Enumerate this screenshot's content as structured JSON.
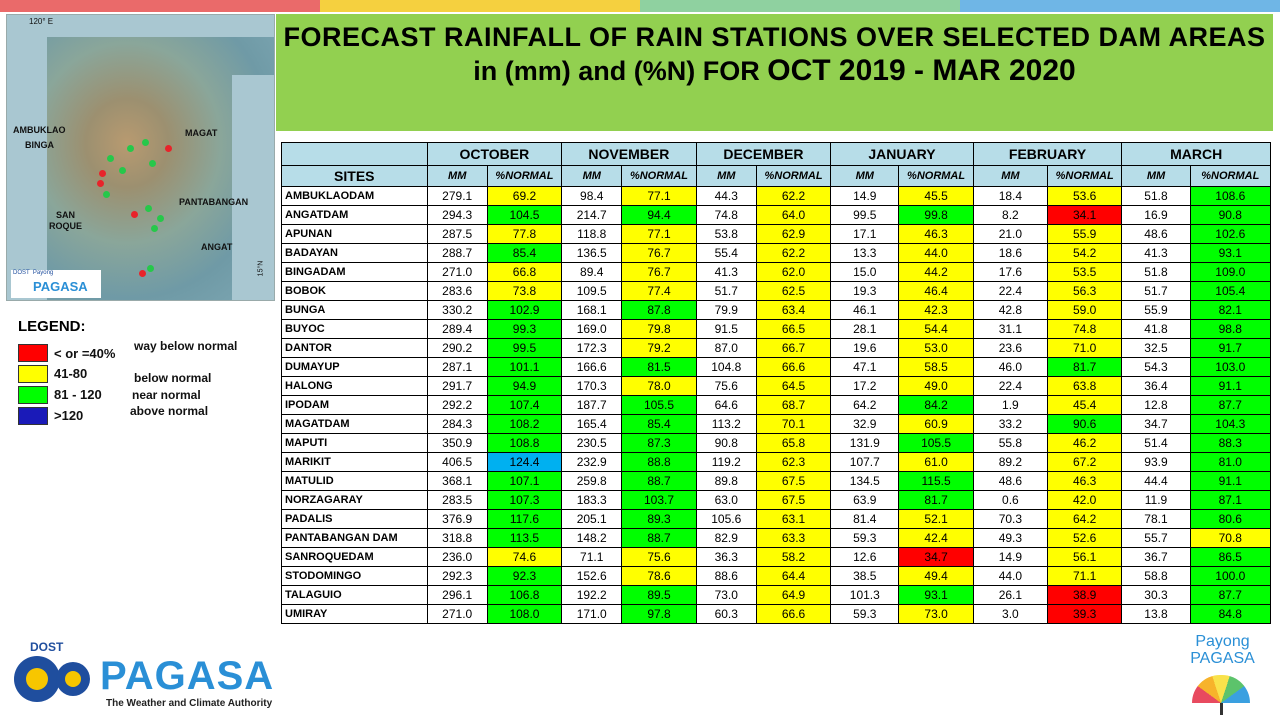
{
  "topbar_colors": [
    "#ea6a6a",
    "#f5d03f",
    "#8fd1a0",
    "#6fb6e6"
  ],
  "title": {
    "line1": "FORECAST RAINFALL OF RAIN STATIONS OVER SELECTED DAM AREAS",
    "line2_prefix": "in (mm) and (%N) FOR",
    "line2_period": "OCT 2019 - MAR 2020"
  },
  "map": {
    "labels": {
      "lon": "120° E",
      "lat": "15°N",
      "ambuklao": "AMBUKLAO",
      "binga": "BINGA",
      "magat": "MAGAT",
      "san_roque": "SAN\nROQUE",
      "pantabangan": "PANTABANGAN",
      "angat": "ANGAT"
    },
    "logo_text": "PAGASA",
    "logo_small": "DOST  Payong"
  },
  "legend": {
    "title": "LEGEND:",
    "items": [
      {
        "range": "< or =40%",
        "desc": "way below normal",
        "color": "#ff0000"
      },
      {
        "range": "41-80",
        "desc": "below normal",
        "color": "#ffff00"
      },
      {
        "range": "81 - 120",
        "desc": "near normal",
        "color": "#00ff00"
      },
      {
        "range": ">120",
        "desc": "above normal",
        "color": "#1a1ab8"
      }
    ]
  },
  "table": {
    "months": [
      "OCTOBER",
      "NOVEMBER",
      "DECEMBER",
      "JANUARY",
      "FEBRUARY",
      "MARCH"
    ],
    "sites_header": "SITES",
    "mm_header": "MM",
    "pct_header": "%NORMAL",
    "rows": [
      {
        "site": "AMBUKLAODAM",
        "cells": [
          [
            "279.1",
            "69.2",
            "y"
          ],
          [
            "98.4",
            "77.1",
            "y"
          ],
          [
            "44.3",
            "62.2",
            "y"
          ],
          [
            "14.9",
            "45.5",
            "y"
          ],
          [
            "18.4",
            "53.6",
            "y"
          ],
          [
            "51.8",
            "108.6",
            "g"
          ]
        ]
      },
      {
        "site": "ANGATDAM",
        "cells": [
          [
            "294.3",
            "104.5",
            "g"
          ],
          [
            "214.7",
            "94.4",
            "g"
          ],
          [
            "74.8",
            "64.0",
            "y"
          ],
          [
            "99.5",
            "99.8",
            "g"
          ],
          [
            "8.2",
            "34.1",
            "r"
          ],
          [
            "16.9",
            "90.8",
            "g"
          ]
        ]
      },
      {
        "site": "APUNAN",
        "cells": [
          [
            "287.5",
            "77.8",
            "y"
          ],
          [
            "118.8",
            "77.1",
            "y"
          ],
          [
            "53.8",
            "62.9",
            "y"
          ],
          [
            "17.1",
            "46.3",
            "y"
          ],
          [
            "21.0",
            "55.9",
            "y"
          ],
          [
            "48.6",
            "102.6",
            "g"
          ]
        ]
      },
      {
        "site": "BADAYAN",
        "cells": [
          [
            "288.7",
            "85.4",
            "g"
          ],
          [
            "136.5",
            "76.7",
            "y"
          ],
          [
            "55.4",
            "62.2",
            "y"
          ],
          [
            "13.3",
            "44.0",
            "y"
          ],
          [
            "18.6",
            "54.2",
            "y"
          ],
          [
            "41.3",
            "93.1",
            "g"
          ]
        ]
      },
      {
        "site": "BINGADAM",
        "cells": [
          [
            "271.0",
            "66.8",
            "y"
          ],
          [
            "89.4",
            "76.7",
            "y"
          ],
          [
            "41.3",
            "62.0",
            "y"
          ],
          [
            "15.0",
            "44.2",
            "y"
          ],
          [
            "17.6",
            "53.5",
            "y"
          ],
          [
            "51.8",
            "109.0",
            "g"
          ]
        ]
      },
      {
        "site": "BOBOK",
        "cells": [
          [
            "283.6",
            "73.8",
            "y"
          ],
          [
            "109.5",
            "77.4",
            "y"
          ],
          [
            "51.7",
            "62.5",
            "y"
          ],
          [
            "19.3",
            "46.4",
            "y"
          ],
          [
            "22.4",
            "56.3",
            "y"
          ],
          [
            "51.7",
            "105.4",
            "g"
          ]
        ]
      },
      {
        "site": "BUNGA",
        "cells": [
          [
            "330.2",
            "102.9",
            "g"
          ],
          [
            "168.1",
            "87.8",
            "g"
          ],
          [
            "79.9",
            "63.4",
            "y"
          ],
          [
            "46.1",
            "42.3",
            "y"
          ],
          [
            "42.8",
            "59.0",
            "y"
          ],
          [
            "55.9",
            "82.1",
            "g"
          ]
        ]
      },
      {
        "site": "BUYOC",
        "cells": [
          [
            "289.4",
            "99.3",
            "g"
          ],
          [
            "169.0",
            "79.8",
            "y"
          ],
          [
            "91.5",
            "66.5",
            "y"
          ],
          [
            "28.1",
            "54.4",
            "y"
          ],
          [
            "31.1",
            "74.8",
            "y"
          ],
          [
            "41.8",
            "98.8",
            "g"
          ]
        ]
      },
      {
        "site": "DANTOR",
        "cells": [
          [
            "290.2",
            "99.5",
            "g"
          ],
          [
            "172.3",
            "79.2",
            "y"
          ],
          [
            "87.0",
            "66.7",
            "y"
          ],
          [
            "19.6",
            "53.0",
            "y"
          ],
          [
            "23.6",
            "71.0",
            "y"
          ],
          [
            "32.5",
            "91.7",
            "g"
          ]
        ]
      },
      {
        "site": "DUMAYUP",
        "cells": [
          [
            "287.1",
            "101.1",
            "g"
          ],
          [
            "166.6",
            "81.5",
            "g"
          ],
          [
            "104.8",
            "66.6",
            "y"
          ],
          [
            "47.1",
            "58.5",
            "y"
          ],
          [
            "46.0",
            "81.7",
            "g"
          ],
          [
            "54.3",
            "103.0",
            "g"
          ]
        ]
      },
      {
        "site": "HALONG",
        "cells": [
          [
            "291.7",
            "94.9",
            "g"
          ],
          [
            "170.3",
            "78.0",
            "y"
          ],
          [
            "75.6",
            "64.5",
            "y"
          ],
          [
            "17.2",
            "49.0",
            "y"
          ],
          [
            "22.4",
            "63.8",
            "y"
          ],
          [
            "36.4",
            "91.1",
            "g"
          ]
        ]
      },
      {
        "site": "IPODAM",
        "cells": [
          [
            "292.2",
            "107.4",
            "g"
          ],
          [
            "187.7",
            "105.5",
            "g"
          ],
          [
            "64.6",
            "68.7",
            "y"
          ],
          [
            "64.2",
            "84.2",
            "g"
          ],
          [
            "1.9",
            "45.4",
            "y"
          ],
          [
            "12.8",
            "87.7",
            "g"
          ]
        ]
      },
      {
        "site": "MAGATDAM",
        "cells": [
          [
            "284.3",
            "108.2",
            "g"
          ],
          [
            "165.4",
            "85.4",
            "g"
          ],
          [
            "113.2",
            "70.1",
            "y"
          ],
          [
            "32.9",
            "60.9",
            "y"
          ],
          [
            "33.2",
            "90.6",
            "g"
          ],
          [
            "34.7",
            "104.3",
            "g"
          ]
        ]
      },
      {
        "site": "MAPUTI",
        "cells": [
          [
            "350.9",
            "108.8",
            "g"
          ],
          [
            "230.5",
            "87.3",
            "g"
          ],
          [
            "90.8",
            "65.8",
            "y"
          ],
          [
            "131.9",
            "105.5",
            "g"
          ],
          [
            "55.8",
            "46.2",
            "y"
          ],
          [
            "51.4",
            "88.3",
            "g"
          ]
        ]
      },
      {
        "site": "MARIKIT",
        "cells": [
          [
            "406.5",
            "124.4",
            "b"
          ],
          [
            "232.9",
            "88.8",
            "g"
          ],
          [
            "119.2",
            "62.3",
            "y"
          ],
          [
            "107.7",
            "61.0",
            "y"
          ],
          [
            "89.2",
            "67.2",
            "y"
          ],
          [
            "93.9",
            "81.0",
            "g"
          ]
        ]
      },
      {
        "site": "MATULID",
        "cells": [
          [
            "368.1",
            "107.1",
            "g"
          ],
          [
            "259.8",
            "88.7",
            "g"
          ],
          [
            "89.8",
            "67.5",
            "y"
          ],
          [
            "134.5",
            "115.5",
            "g"
          ],
          [
            "48.6",
            "46.3",
            "y"
          ],
          [
            "44.4",
            "91.1",
            "g"
          ]
        ]
      },
      {
        "site": "NORZAGARAY",
        "cells": [
          [
            "283.5",
            "107.3",
            "g"
          ],
          [
            "183.3",
            "103.7",
            "g"
          ],
          [
            "63.0",
            "67.5",
            "y"
          ],
          [
            "63.9",
            "81.7",
            "g"
          ],
          [
            "0.6",
            "42.0",
            "y"
          ],
          [
            "11.9",
            "87.1",
            "g"
          ]
        ]
      },
      {
        "site": "PADALIS",
        "cells": [
          [
            "376.9",
            "117.6",
            "g"
          ],
          [
            "205.1",
            "89.3",
            "g"
          ],
          [
            "105.6",
            "63.1",
            "y"
          ],
          [
            "81.4",
            "52.1",
            "y"
          ],
          [
            "70.3",
            "64.2",
            "y"
          ],
          [
            "78.1",
            "80.6",
            "g"
          ]
        ]
      },
      {
        "site": "PANTABANGAN DAM",
        "cells": [
          [
            "318.8",
            "113.5",
            "g"
          ],
          [
            "148.2",
            "88.7",
            "g"
          ],
          [
            "82.9",
            "63.3",
            "y"
          ],
          [
            "59.3",
            "42.4",
            "y"
          ],
          [
            "49.3",
            "52.6",
            "y"
          ],
          [
            "55.7",
            "70.8",
            "y"
          ]
        ]
      },
      {
        "site": "SANROQUEDAM",
        "cells": [
          [
            "236.0",
            "74.6",
            "y"
          ],
          [
            "71.1",
            "75.6",
            "y"
          ],
          [
            "36.3",
            "58.2",
            "y"
          ],
          [
            "12.6",
            "34.7",
            "r"
          ],
          [
            "14.9",
            "56.1",
            "y"
          ],
          [
            "36.7",
            "86.5",
            "g"
          ]
        ]
      },
      {
        "site": "STODOMINGO",
        "cells": [
          [
            "292.3",
            "92.3",
            "g"
          ],
          [
            "152.6",
            "78.6",
            "y"
          ],
          [
            "88.6",
            "64.4",
            "y"
          ],
          [
            "38.5",
            "49.4",
            "y"
          ],
          [
            "44.0",
            "71.1",
            "y"
          ],
          [
            "58.8",
            "100.0",
            "g"
          ]
        ]
      },
      {
        "site": "TALAGUIO",
        "cells": [
          [
            "296.1",
            "106.8",
            "g"
          ],
          [
            "192.2",
            "89.5",
            "g"
          ],
          [
            "73.0",
            "64.9",
            "y"
          ],
          [
            "101.3",
            "93.1",
            "g"
          ],
          [
            "26.1",
            "38.9",
            "r"
          ],
          [
            "30.3",
            "87.7",
            "g"
          ]
        ]
      },
      {
        "site": "UMIRAY",
        "cells": [
          [
            "271.0",
            "108.0",
            "g"
          ],
          [
            "171.0",
            "97.8",
            "g"
          ],
          [
            "60.3",
            "66.6",
            "y"
          ],
          [
            "59.3",
            "73.0",
            "y"
          ],
          [
            "3.0",
            "39.3",
            "r"
          ],
          [
            "13.8",
            "84.8",
            "g"
          ]
        ]
      }
    ]
  },
  "footer": {
    "dost": "DOST",
    "pagasa": "PAGASA",
    "tagline": "The Weather and Climate Authority",
    "payong_line1": "Payong",
    "payong_line2": "PAGASA"
  }
}
